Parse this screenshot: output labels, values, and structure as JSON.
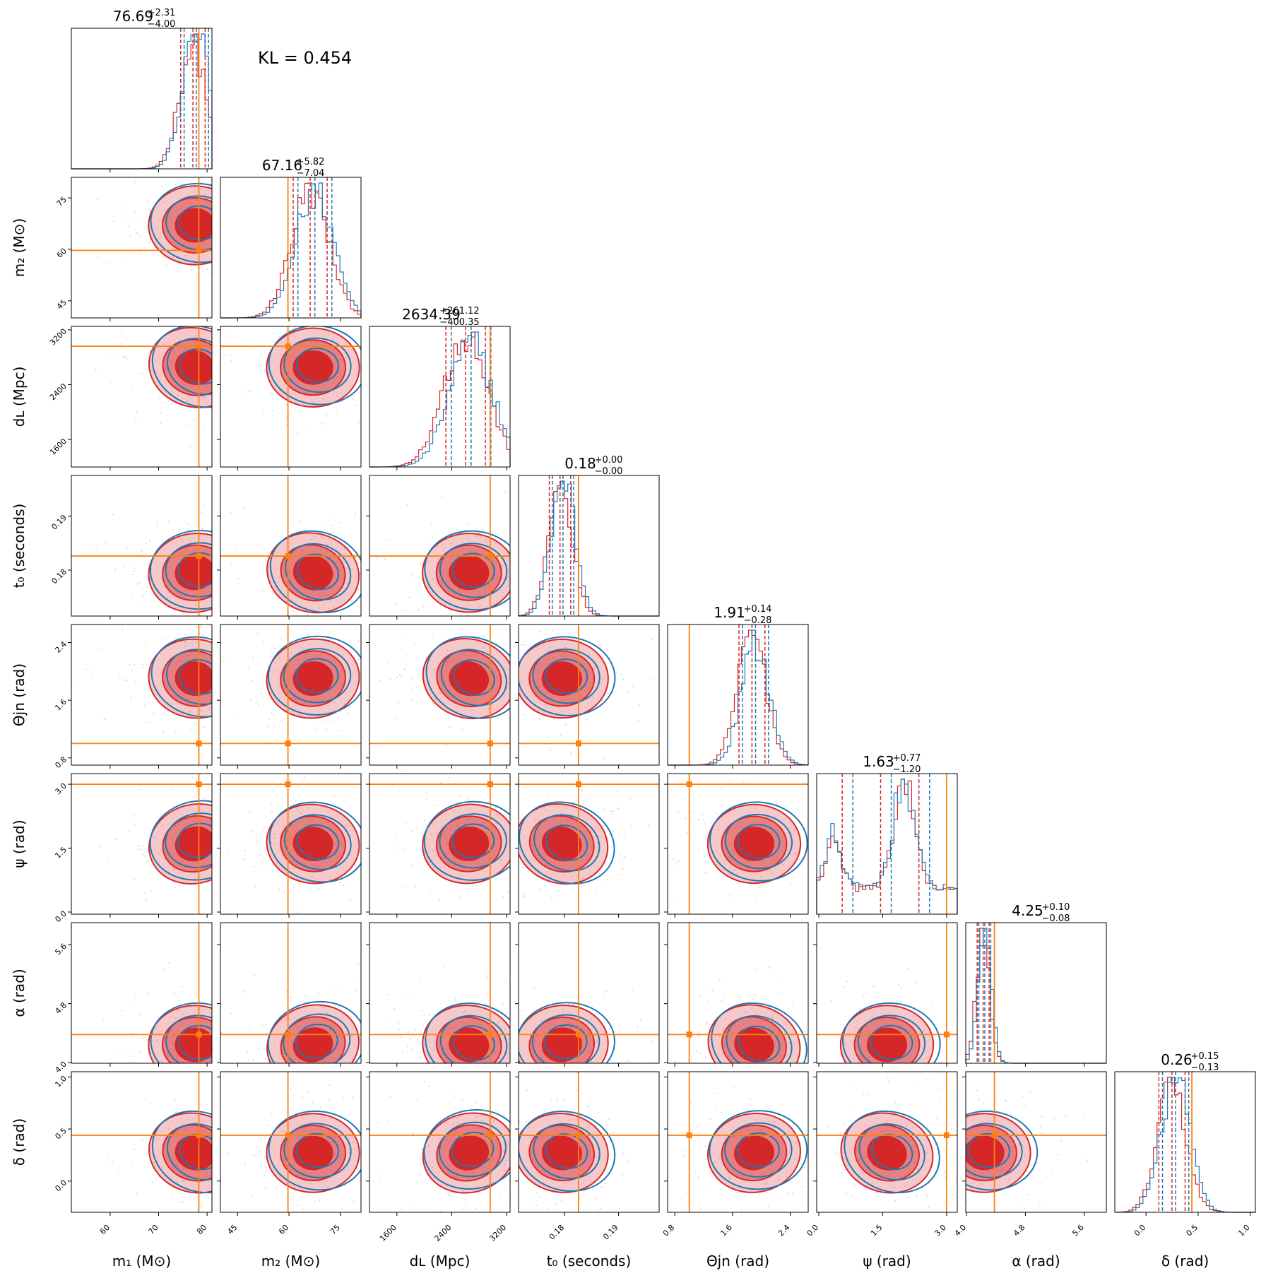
{
  "chart_data": {
    "type": "corner",
    "annotation": "KL = 0.454",
    "colors": {
      "posterior_a": "#d62728",
      "posterior_b": "#1f77b4",
      "truth": "#ff7f0e"
    },
    "parameters": [
      {
        "key": "m1",
        "label": "m₁ (M⊙)",
        "range": [
          52,
          81
        ],
        "ticks": [
          60,
          70,
          80
        ],
        "tick_labels": [
          "60",
          "70",
          "80"
        ],
        "truth": 78.3,
        "median": "76.69",
        "plus": "+2.31",
        "minus": "−4.00"
      },
      {
        "key": "m2",
        "label": "m₂ (M⊙)",
        "range": [
          40,
          81
        ],
        "ticks": [
          45,
          60,
          75
        ],
        "tick_labels": [
          "45",
          "60",
          "75"
        ],
        "truth": 59.7,
        "median": "67.16",
        "plus": "+5.82",
        "minus": "−7.04"
      },
      {
        "key": "dL",
        "label": "dʟ (Mpc)",
        "range": [
          1200,
          3250
        ],
        "ticks": [
          1600,
          2400,
          3200
        ],
        "tick_labels": [
          "1600",
          "2400",
          "3200"
        ],
        "truth": 2960,
        "median": "2634.39",
        "plus": "+261.12",
        "minus": "−400.35"
      },
      {
        "key": "t0",
        "label": "t₀ (seconds)",
        "range": [
          0.1715,
          0.1975
        ],
        "ticks": [
          0.18,
          0.19
        ],
        "tick_labels": [
          "0.18",
          "0.19"
        ],
        "truth": 0.1826,
        "median": "0.18",
        "plus": "+0.00",
        "minus": "−0.00"
      },
      {
        "key": "thetajn",
        "label": "Θjn (rad)",
        "range": [
          0.7,
          2.65
        ],
        "ticks": [
          0.8,
          1.6,
          2.4
        ],
        "tick_labels": [
          "0.8",
          "1.6",
          "2.4"
        ],
        "truth": 1.0,
        "median": "1.91",
        "plus": "+0.14",
        "minus": "−0.28"
      },
      {
        "key": "psi",
        "label": "ψ (rad)",
        "range": [
          -0.05,
          3.25
        ],
        "ticks": [
          0.0,
          1.5,
          3.0
        ],
        "tick_labels": [
          "0.0",
          "1.5",
          "3.0"
        ],
        "truth": 3.0,
        "median": "1.63",
        "plus": "+0.77",
        "minus": "−1.20"
      },
      {
        "key": "alpha",
        "label": "α (rad)",
        "range": [
          3.99,
          5.9
        ],
        "ticks": [
          4.0,
          4.8,
          5.6
        ],
        "tick_labels": [
          "4.0",
          "4.8",
          "5.6"
        ],
        "truth": 4.38,
        "median": "4.25",
        "plus": "+0.10",
        "minus": "−0.08"
      },
      {
        "key": "delta",
        "label": "δ (rad)",
        "range": [
          -0.3,
          1.05
        ],
        "ticks": [
          0.0,
          0.5,
          1.0
        ],
        "tick_labels": [
          "0.0",
          "0.5",
          "1.0"
        ],
        "truth": 0.44,
        "median": "0.26",
        "plus": "+0.15",
        "minus": "−0.13"
      }
    ]
  }
}
